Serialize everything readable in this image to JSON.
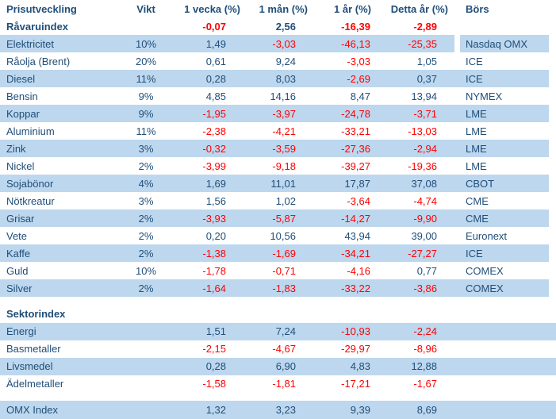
{
  "colors": {
    "text_primary": "#1f4e79",
    "text_negative": "#ff0000",
    "row_band": "#bdd7ee",
    "bg": "#ffffff"
  },
  "chart_data": {
    "type": "table",
    "columns": [
      "Prisutveckling",
      "Vikt",
      "1 vecka (%)",
      "1 mån (%)",
      "1 år (%)",
      "Detta år (%)",
      "Börs"
    ],
    "sections": [
      {
        "title_row": {
          "name": "Råvaruindex",
          "values": [
            "-0,07",
            "2,56",
            "-16,39",
            "-2,89"
          ]
        },
        "rows": [
          {
            "name": "Elektricitet",
            "weight": "10%",
            "values": [
              "1,49",
              "-3,03",
              "-46,13",
              "-25,35"
            ],
            "exchange": "Nasdaq OMX"
          },
          {
            "name": "Råolja (Brent)",
            "weight": "20%",
            "values": [
              "0,61",
              "9,24",
              "-3,03",
              "1,05"
            ],
            "exchange": "ICE"
          },
          {
            "name": "Diesel",
            "weight": "11%",
            "values": [
              "0,28",
              "8,03",
              "-2,69",
              "0,37"
            ],
            "exchange": "ICE"
          },
          {
            "name": "Bensin",
            "weight": "9%",
            "values": [
              "4,85",
              "14,16",
              "8,47",
              "13,94"
            ],
            "exchange": "NYMEX"
          },
          {
            "name": "Koppar",
            "weight": "9%",
            "values": [
              "-1,95",
              "-3,97",
              "-24,78",
              "-3,71"
            ],
            "exchange": "LME"
          },
          {
            "name": "Aluminium",
            "weight": "11%",
            "values": [
              "-2,38",
              "-4,21",
              "-33,21",
              "-13,03"
            ],
            "exchange": "LME"
          },
          {
            "name": "Zink",
            "weight": "3%",
            "values": [
              "-0,32",
              "-3,59",
              "-27,36",
              "-2,94"
            ],
            "exchange": "LME"
          },
          {
            "name": "Nickel",
            "weight": "2%",
            "values": [
              "-3,99",
              "-9,18",
              "-39,27",
              "-19,36"
            ],
            "exchange": "LME"
          },
          {
            "name": "Sojabönor",
            "weight": "4%",
            "values": [
              "1,69",
              "11,01",
              "17,87",
              "37,08"
            ],
            "exchange": "CBOT"
          },
          {
            "name": "Nötkreatur",
            "weight": "3%",
            "values": [
              "1,56",
              "1,02",
              "-3,64",
              "-4,74"
            ],
            "exchange": "CME"
          },
          {
            "name": "Grisar",
            "weight": "2%",
            "values": [
              "-3,93",
              "-5,87",
              "-14,27",
              "-9,90"
            ],
            "exchange": "CME"
          },
          {
            "name": "Vete",
            "weight": "2%",
            "values": [
              "0,20",
              "10,56",
              "43,94",
              "39,00"
            ],
            "exchange": "Euronext"
          },
          {
            "name": "Kaffe",
            "weight": "2%",
            "values": [
              "-1,38",
              "-1,69",
              "-34,21",
              "-27,27"
            ],
            "exchange": "ICE"
          },
          {
            "name": "Guld",
            "weight": "10%",
            "values": [
              "-1,78",
              "-0,71",
              "-4,16",
              "0,77"
            ],
            "exchange": "COMEX"
          },
          {
            "name": "Silver",
            "weight": "2%",
            "values": [
              "-1,64",
              "-1,83",
              "-33,22",
              "-3,86"
            ],
            "exchange": "COMEX"
          }
        ]
      },
      {
        "title": "Sektorindex",
        "rows": [
          {
            "name": "Energi",
            "weight": "",
            "values": [
              "1,51",
              "7,24",
              "-10,93",
              "-2,24"
            ],
            "exchange": ""
          },
          {
            "name": "Basmetaller",
            "weight": "",
            "values": [
              "-2,15",
              "-4,67",
              "-29,97",
              "-8,96"
            ],
            "exchange": ""
          },
          {
            "name": "Livsmedel",
            "weight": "",
            "values": [
              "0,28",
              "6,90",
              "4,83",
              "12,88"
            ],
            "exchange": ""
          },
          {
            "name": "Ädelmetaller",
            "weight": "",
            "values": [
              "-1,58",
              "-1,81",
              "-17,21",
              "-1,67"
            ],
            "exchange": ""
          }
        ]
      },
      {
        "rows": [
          {
            "name": "OMX Index",
            "weight": "",
            "values": [
              "1,32",
              "3,23",
              "9,39",
              "8,69"
            ],
            "exchange": ""
          }
        ]
      }
    ]
  }
}
